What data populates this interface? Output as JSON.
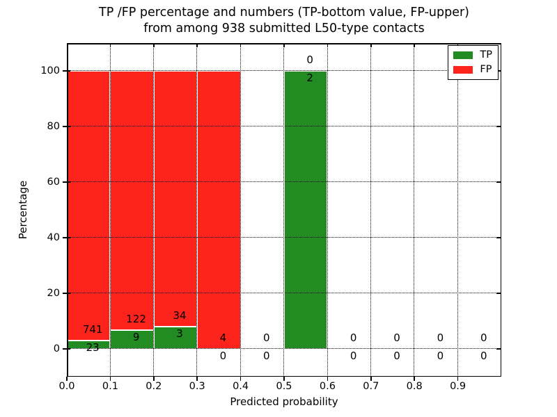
{
  "figure": {
    "title_line1": "TP /FP percentage and numbers (TP-bottom value, FP-upper)",
    "title_line2": "from among 938 submitted L50-type contacts",
    "xlabel": "Predicted probability",
    "ylabel": "Percentage"
  },
  "legend": {
    "position": "upper right",
    "items": [
      {
        "label": "TP",
        "color": "#228b22"
      },
      {
        "label": "FP",
        "color": "#fb231c"
      }
    ]
  },
  "chart_data": {
    "type": "bar",
    "stacked": true,
    "title": "TP /FP percentage and numbers (TP-bottom value, FP-upper) from among 938 submitted L50-type contacts",
    "xlabel": "Predicted probability",
    "ylabel": "Percentage",
    "bins": [
      0.0,
      0.1,
      0.2,
      0.3,
      0.4,
      0.5,
      0.6,
      0.7,
      0.8,
      0.9
    ],
    "bin_width": 0.1,
    "series": [
      {
        "name": "TP",
        "color": "#228b22",
        "counts": [
          23,
          9,
          3,
          0,
          0,
          2,
          0,
          0,
          0,
          0
        ],
        "pct": [
          3.01,
          6.87,
          8.11,
          0,
          0,
          100,
          0,
          0,
          0,
          0
        ]
      },
      {
        "name": "FP",
        "color": "#fb231c",
        "counts": [
          741,
          122,
          34,
          4,
          0,
          0,
          0,
          0,
          0,
          0
        ],
        "pct": [
          96.99,
          93.13,
          91.89,
          100,
          0,
          0,
          0,
          0,
          0,
          0
        ]
      }
    ],
    "xticks": [
      "0.0",
      "0.1",
      "0.2",
      "0.3",
      "0.4",
      "0.5",
      "0.6",
      "0.7",
      "0.8",
      "0.9"
    ],
    "yticks": [
      0,
      20,
      40,
      60,
      80,
      100
    ],
    "xlim": [
      0.0,
      1.0
    ],
    "ylim": [
      -10,
      110
    ],
    "grid": true,
    "grid_style": "dotted",
    "legend_position": "upper right"
  },
  "colors": {
    "tp": "#228b22",
    "fp": "#fb231c",
    "grid": "#000000",
    "text": "#000000",
    "background": "#ffffff",
    "bar_edge": "#ffffff"
  }
}
